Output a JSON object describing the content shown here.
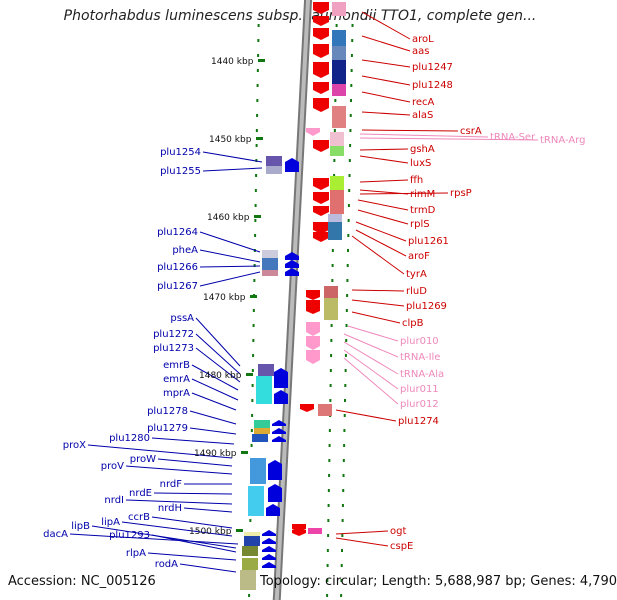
{
  "title": "Photorhabdus luminescens subsp. laumondii TTO1, complete gen...",
  "accession": "Accession: NC_005126",
  "topology": "Topology: circular; Length: 5,688,987 bp; Genes: 4,790",
  "colors": {
    "gene_label": "#0000aa",
    "right_gene_label": "#cc0000",
    "rna_label": "#ee88bb",
    "forward_arrow": "#0000dd",
    "reverse_arrow": "#ee0000",
    "rna_arrow": "#ff99cc",
    "backbone": "#999999",
    "tick": "#117711"
  },
  "scale_labels": [
    {
      "label": "1440 kbp"
    },
    {
      "label": "1450 kbp"
    },
    {
      "label": "1460 kbp"
    },
    {
      "label": "1470 kbp"
    },
    {
      "label": "1480 kbp"
    },
    {
      "label": "1490 kbp"
    },
    {
      "label": "1500 kbp"
    }
  ],
  "left_genes": [
    "plu1254",
    "plu1255",
    "plu1264",
    "pheA",
    "plu1266",
    "plu1267",
    "pssA",
    "plu1272",
    "plu1273",
    "emrB",
    "emrA",
    "mprA",
    "plu1278",
    "plu1279",
    "plu1280",
    "proX",
    "proW",
    "proV",
    "nrdF",
    "nrdE",
    "nrdI",
    "nrdH",
    "ccrB",
    "lipA",
    "dacA",
    "lipB",
    "plu1293",
    "rlpA",
    "rodA"
  ],
  "right_genes": [
    {
      "label": "aroL",
      "kind": "gene"
    },
    {
      "label": "aas",
      "kind": "gene"
    },
    {
      "label": "plu1247",
      "kind": "gene"
    },
    {
      "label": "plu1248",
      "kind": "gene"
    },
    {
      "label": "recA",
      "kind": "gene"
    },
    {
      "label": "alaS",
      "kind": "gene"
    },
    {
      "label": "csrA",
      "kind": "gene"
    },
    {
      "label": "tRNA-Ser",
      "kind": "rna"
    },
    {
      "label": "tRNA-Arg",
      "kind": "rna"
    },
    {
      "label": "gshA",
      "kind": "gene"
    },
    {
      "label": "luxS",
      "kind": "gene"
    },
    {
      "label": "ffh",
      "kind": "gene"
    },
    {
      "label": "rimM",
      "kind": "gene"
    },
    {
      "label": "rpsP",
      "kind": "gene"
    },
    {
      "label": "trmD",
      "kind": "gene"
    },
    {
      "label": "rplS",
      "kind": "gene"
    },
    {
      "label": "plu1261",
      "kind": "gene"
    },
    {
      "label": "aroF",
      "kind": "gene"
    },
    {
      "label": "tyrA",
      "kind": "gene"
    },
    {
      "label": "rluD",
      "kind": "gene"
    },
    {
      "label": "plu1269",
      "kind": "gene"
    },
    {
      "label": "clpB",
      "kind": "gene"
    },
    {
      "label": "plur010",
      "kind": "rna"
    },
    {
      "label": "tRNA-Ile",
      "kind": "rna"
    },
    {
      "label": "tRNA-Ala",
      "kind": "rna"
    },
    {
      "label": "plur011",
      "kind": "rna"
    },
    {
      "label": "plur012",
      "kind": "rna"
    },
    {
      "label": "plu1274",
      "kind": "gene"
    },
    {
      "label": "ogt",
      "kind": "gene"
    },
    {
      "label": "cspE",
      "kind": "gene"
    }
  ]
}
